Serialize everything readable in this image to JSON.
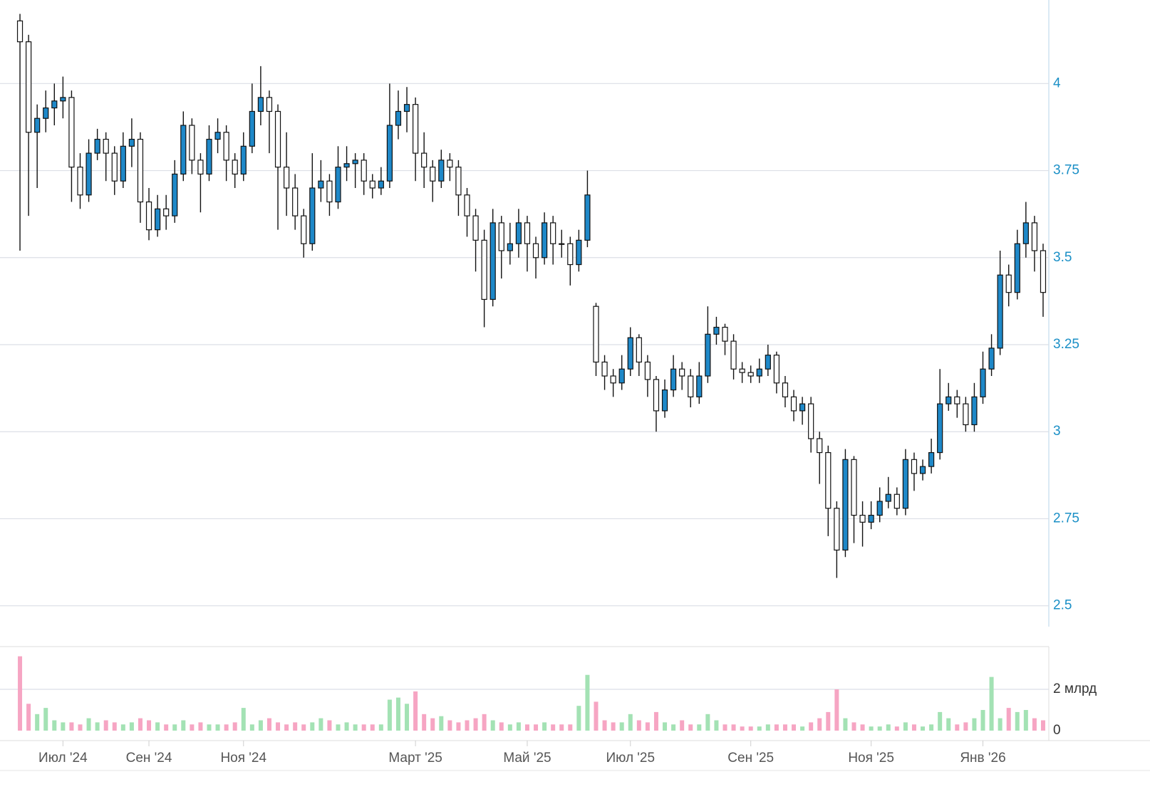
{
  "chart_data": {
    "type": "candlestick",
    "categories": [
      null,
      null,
      null,
      null,
      null,
      "Июл '24",
      null,
      null,
      null,
      null,
      null,
      null,
      null,
      null,
      null,
      "Сен '24",
      null,
      null,
      null,
      null,
      null,
      null,
      null,
      null,
      null,
      null,
      "Ноя '24",
      null,
      null,
      null,
      null,
      null,
      null,
      null,
      null,
      null,
      null,
      null,
      null,
      null,
      null,
      null,
      null,
      null,
      null,
      null,
      "Март '25",
      null,
      null,
      null,
      null,
      null,
      null,
      null,
      null,
      null,
      null,
      null,
      null,
      "Май '25",
      null,
      null,
      null,
      null,
      null,
      null,
      null,
      null,
      null,
      null,
      null,
      "Июл '25",
      null,
      null,
      null,
      null,
      null,
      null,
      null,
      null,
      null,
      null,
      null,
      null,
      null,
      "Сен '25",
      null,
      null,
      null,
      null,
      null,
      null,
      null,
      null,
      null,
      null,
      null,
      null,
      null,
      "Ноя '25",
      null,
      null,
      null,
      null,
      null,
      null,
      null,
      null,
      null,
      null,
      null,
      null,
      "Янв '26",
      null,
      null,
      null,
      null,
      null,
      null,
      null
    ],
    "open": [
      4.18,
      4.12,
      3.86,
      3.9,
      3.93,
      3.95,
      3.96,
      3.76,
      3.68,
      3.8,
      3.84,
      3.8,
      3.72,
      3.82,
      3.84,
      3.66,
      3.58,
      3.64,
      3.62,
      3.74,
      3.88,
      3.78,
      3.74,
      3.84,
      3.86,
      3.78,
      3.74,
      3.82,
      3.92,
      3.96,
      3.92,
      3.76,
      3.7,
      3.62,
      3.54,
      3.7,
      3.72,
      3.66,
      3.76,
      3.77,
      3.78,
      3.72,
      3.7,
      3.72,
      3.88,
      3.92,
      3.94,
      3.8,
      3.76,
      3.72,
      3.78,
      3.76,
      3.68,
      3.62,
      3.55,
      3.38,
      3.6,
      3.52,
      3.54,
      3.6,
      3.54,
      3.5,
      3.6,
      3.54,
      3.54,
      3.48,
      3.55,
      3.36,
      3.2,
      3.16,
      3.14,
      3.18,
      3.27,
      3.2,
      3.15,
      3.06,
      3.12,
      3.18,
      3.16,
      3.1,
      3.16,
      3.28,
      3.3,
      3.26,
      3.18,
      3.17,
      3.16,
      3.18,
      3.22,
      3.14,
      3.1,
      3.06,
      3.08,
      2.98,
      2.94,
      2.78,
      2.66,
      2.92,
      2.76,
      2.74,
      2.76,
      2.8,
      2.82,
      2.78,
      2.92,
      2.88,
      2.9,
      2.94,
      3.08,
      3.1,
      3.08,
      3.02,
      3.1,
      3.18,
      3.24,
      3.45,
      3.4,
      3.54,
      3.6,
      3.52
    ],
    "high": [
      4.2,
      4.14,
      3.94,
      3.98,
      4.0,
      4.02,
      3.98,
      3.8,
      3.84,
      3.87,
      3.86,
      3.82,
      3.86,
      3.9,
      3.86,
      3.7,
      3.68,
      3.68,
      3.78,
      3.92,
      3.9,
      3.8,
      3.88,
      3.9,
      3.88,
      3.8,
      3.86,
      4.0,
      4.05,
      3.98,
      3.94,
      3.86,
      3.74,
      3.64,
      3.8,
      3.78,
      3.74,
      3.82,
      3.82,
      3.8,
      3.8,
      3.74,
      3.76,
      4.0,
      3.98,
      3.99,
      3.96,
      3.86,
      3.78,
      3.81,
      3.8,
      3.78,
      3.7,
      3.64,
      3.58,
      3.64,
      3.62,
      3.6,
      3.64,
      3.62,
      3.56,
      3.63,
      3.62,
      3.58,
      3.56,
      3.58,
      3.75,
      3.37,
      3.22,
      3.18,
      3.22,
      3.3,
      3.28,
      3.22,
      3.16,
      3.15,
      3.22,
      3.2,
      3.18,
      3.2,
      3.36,
      3.33,
      3.31,
      3.28,
      3.2,
      3.19,
      3.21,
      3.25,
      3.23,
      3.16,
      3.12,
      3.1,
      3.1,
      3.0,
      2.96,
      2.8,
      2.95,
      2.93,
      2.8,
      2.8,
      2.84,
      2.87,
      2.84,
      2.95,
      2.94,
      2.92,
      2.98,
      3.18,
      3.14,
      3.12,
      3.1,
      3.14,
      3.23,
      3.28,
      3.52,
      3.48,
      3.58,
      3.66,
      3.62,
      3.54
    ],
    "low": [
      3.52,
      3.62,
      3.7,
      3.86,
      3.88,
      3.9,
      3.66,
      3.64,
      3.66,
      3.78,
      3.72,
      3.68,
      3.7,
      3.76,
      3.6,
      3.55,
      3.56,
      3.58,
      3.6,
      3.72,
      3.74,
      3.63,
      3.72,
      3.8,
      3.72,
      3.7,
      3.72,
      3.8,
      3.88,
      3.8,
      3.58,
      3.62,
      3.58,
      3.5,
      3.52,
      3.66,
      3.62,
      3.64,
      3.72,
      3.7,
      3.68,
      3.67,
      3.68,
      3.7,
      3.84,
      3.86,
      3.72,
      3.7,
      3.66,
      3.7,
      3.72,
      3.62,
      3.56,
      3.46,
      3.3,
      3.36,
      3.44,
      3.48,
      3.5,
      3.46,
      3.44,
      3.48,
      3.48,
      3.5,
      3.42,
      3.46,
      3.53,
      3.16,
      3.12,
      3.1,
      3.12,
      3.16,
      3.16,
      3.1,
      3.0,
      3.04,
      3.1,
      3.12,
      3.07,
      3.08,
      3.14,
      3.25,
      3.22,
      3.15,
      3.14,
      3.14,
      3.14,
      3.16,
      3.11,
      3.07,
      3.03,
      3.02,
      2.94,
      2.85,
      2.7,
      2.58,
      2.64,
      2.68,
      2.67,
      2.72,
      2.74,
      2.78,
      2.76,
      2.76,
      2.83,
      2.86,
      2.88,
      2.92,
      3.06,
      3.04,
      3.0,
      3.0,
      3.08,
      3.16,
      3.22,
      3.36,
      3.38,
      3.5,
      3.46,
      3.33
    ],
    "close": [
      4.12,
      3.86,
      3.9,
      3.93,
      3.95,
      3.96,
      3.76,
      3.68,
      3.8,
      3.84,
      3.8,
      3.72,
      3.82,
      3.84,
      3.66,
      3.58,
      3.64,
      3.62,
      3.74,
      3.88,
      3.78,
      3.74,
      3.84,
      3.86,
      3.78,
      3.74,
      3.82,
      3.92,
      3.96,
      3.92,
      3.76,
      3.7,
      3.62,
      3.54,
      3.7,
      3.72,
      3.66,
      3.76,
      3.77,
      3.78,
      3.72,
      3.7,
      3.72,
      3.88,
      3.92,
      3.94,
      3.8,
      3.76,
      3.72,
      3.78,
      3.76,
      3.68,
      3.62,
      3.55,
      3.38,
      3.6,
      3.52,
      3.54,
      3.6,
      3.54,
      3.5,
      3.6,
      3.54,
      3.54,
      3.48,
      3.55,
      3.68,
      3.2,
      3.16,
      3.14,
      3.18,
      3.27,
      3.2,
      3.15,
      3.06,
      3.12,
      3.18,
      3.16,
      3.1,
      3.16,
      3.28,
      3.3,
      3.26,
      3.18,
      3.17,
      3.16,
      3.18,
      3.22,
      3.14,
      3.1,
      3.06,
      3.08,
      2.98,
      2.94,
      2.78,
      2.66,
      2.92,
      2.76,
      2.74,
      2.76,
      2.8,
      2.82,
      2.78,
      2.92,
      2.88,
      2.9,
      2.94,
      3.08,
      3.1,
      3.08,
      3.02,
      3.1,
      3.18,
      3.24,
      3.45,
      3.4,
      3.54,
      3.6,
      3.52,
      3.4
    ],
    "up_color": "#1e88c8",
    "down_color": "#ffffff",
    "ylim": [
      2.44,
      4.24
    ],
    "yticks": [
      2.5,
      2.75,
      3,
      3.25,
      3.5,
      3.75,
      4
    ],
    "grid": true,
    "volume": {
      "type": "bar",
      "values": [
        3.6,
        1.3,
        0.8,
        1.1,
        0.5,
        0.4,
        0.4,
        0.3,
        0.6,
        0.4,
        0.5,
        0.4,
        0.3,
        0.4,
        0.6,
        0.5,
        0.4,
        0.3,
        0.3,
        0.5,
        0.3,
        0.4,
        0.3,
        0.3,
        0.3,
        0.4,
        1.1,
        0.3,
        0.5,
        0.6,
        0.4,
        0.3,
        0.4,
        0.3,
        0.4,
        0.6,
        0.5,
        0.3,
        0.4,
        0.3,
        0.3,
        0.3,
        0.3,
        1.5,
        1.6,
        1.3,
        1.9,
        0.8,
        0.6,
        0.7,
        0.5,
        0.4,
        0.5,
        0.6,
        0.8,
        0.5,
        0.4,
        0.3,
        0.4,
        0.3,
        0.3,
        0.4,
        0.3,
        0.3,
        0.3,
        1.2,
        2.7,
        1.4,
        0.5,
        0.4,
        0.4,
        0.8,
        0.5,
        0.4,
        0.9,
        0.4,
        0.3,
        0.5,
        0.3,
        0.3,
        0.8,
        0.5,
        0.3,
        0.3,
        0.2,
        0.2,
        0.2,
        0.3,
        0.3,
        0.3,
        0.3,
        0.2,
        0.4,
        0.6,
        0.9,
        2.0,
        0.6,
        0.4,
        0.3,
        0.2,
        0.2,
        0.3,
        0.2,
        0.4,
        0.3,
        0.2,
        0.3,
        0.9,
        0.6,
        0.3,
        0.4,
        0.6,
        1.0,
        2.6,
        0.6,
        1.1,
        0.9,
        1.0,
        0.6,
        0.5
      ],
      "up_color": "#a3e2b4",
      "down_color": "#f6a5c3",
      "ylim": [
        0,
        4.07
      ],
      "yticks": [
        0,
        {
          "value": 2,
          "label": "2 млрд"
        }
      ],
      "grid": true
    }
  }
}
